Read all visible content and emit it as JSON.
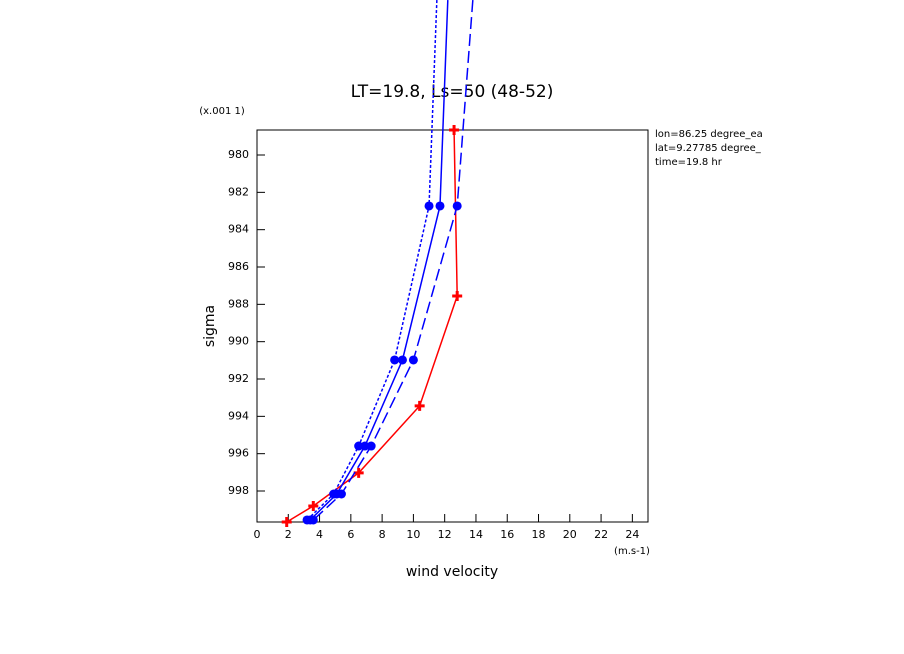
{
  "chart_data": {
    "type": "line",
    "title": "LT=19.8, Ls=50 (48-52)",
    "x_label": "wind velocity",
    "x_units": "(m.s-1)",
    "y_label": "sigma",
    "y_units": "(x.001 1)",
    "annotations": [
      "lon=86.25 degree_ea",
      "lat=9.27785 degree_",
      "time=19.8 hr"
    ],
    "xlim": [
      0,
      25
    ],
    "xticks": [
      0,
      2,
      4,
      6,
      8,
      10,
      12,
      14,
      16,
      18,
      20,
      22,
      24
    ],
    "ylim": [
      978.66,
      999.66
    ],
    "y_reversed": true,
    "yticks": [
      980,
      982,
      984,
      986,
      988,
      990,
      992,
      994,
      996,
      998
    ],
    "series": [
      {
        "color": "#ff0000",
        "dash": "solid",
        "marker": "plus",
        "x": [
          12.6,
          12.8,
          10.4,
          6.5,
          3.6,
          1.9
        ],
        "values": [
          978.66,
          987.55,
          993.44,
          997.03,
          998.8,
          999.66
        ]
      },
      {
        "color": "#0000ff",
        "dash": "dotted",
        "marker": "circle",
        "x": [
          11.5,
          11.0,
          8.8,
          6.5,
          4.9,
          3.2
        ],
        "values": [
          971.7,
          982.73,
          990.98,
          995.59,
          998.16,
          999.55
        ]
      },
      {
        "color": "#0000ff",
        "dash": "solid",
        "marker": "circle",
        "x": [
          12.2,
          11.7,
          9.3,
          6.9,
          5.1,
          3.4
        ],
        "values": [
          971.7,
          982.73,
          990.98,
          995.59,
          998.16,
          999.55
        ]
      },
      {
        "color": "#0000ff",
        "dash": "dashed",
        "marker": "circle",
        "x": [
          13.8,
          12.8,
          10.0,
          7.3,
          5.4,
          3.6
        ],
        "values": [
          971.7,
          982.73,
          990.98,
          995.59,
          998.16,
          999.55
        ]
      }
    ]
  }
}
